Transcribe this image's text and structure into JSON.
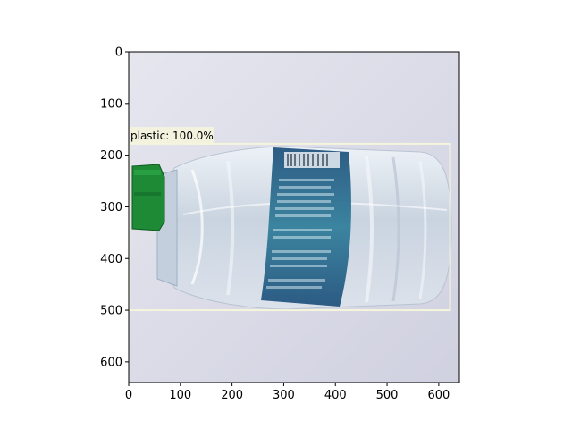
{
  "image": {
    "x_ticks": [
      "0",
      "100",
      "200",
      "300",
      "400",
      "500",
      "600"
    ],
    "y_ticks": [
      "0",
      "100",
      "200",
      "300",
      "400",
      "500",
      "600"
    ],
    "x_range": [
      0,
      640
    ],
    "y_range": [
      0,
      640
    ],
    "background_color": "#dcdde9"
  },
  "detection": {
    "label": "plastic: 100.0%",
    "box": {
      "x1": 2,
      "y1": 178,
      "x2": 622,
      "y2": 500
    },
    "box_color": "#f5f5dc"
  },
  "objects": {
    "bottle_cap_color": "#1e8a36",
    "label_band_color": "#1d4f7a"
  }
}
